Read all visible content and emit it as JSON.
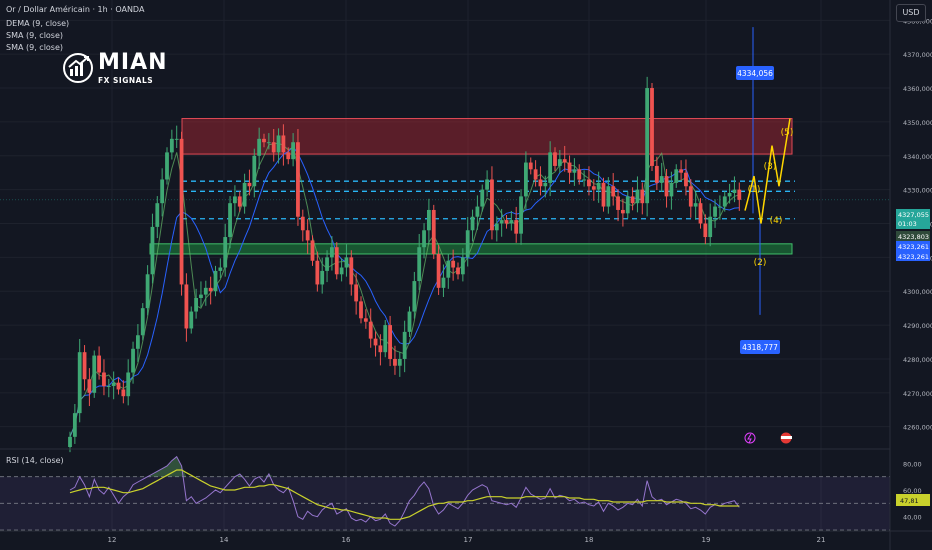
{
  "header": {
    "title": "Or / Dollar Américain · 1h · OANDA",
    "indicator_1": "DEMA (9, close)",
    "indicator_2": "SMA (9, close)",
    "indicator_3": "SMA (9, close)",
    "rsi_label": "RSI (14, close)"
  },
  "currency_button": "USD",
  "logo": {
    "main": "MIAN",
    "sub": "FX SIGNALS"
  },
  "colors": {
    "bg": "#131722",
    "up": "#26a69a",
    "down": "#ef5350",
    "up_candle": "#3fa874",
    "resistance_zone": "#b22833",
    "support_zone": "#1e8a3e",
    "dashed": "#29b6f6",
    "wave": "#ffd600",
    "rsi_line": "#9575cd",
    "rsi_ma": "#c9d12c",
    "price_label": "#2962ff"
  },
  "chart_data": [
    {
      "type": "candlestick",
      "x_ticks": [
        "12",
        "14",
        "16",
        "17",
        "18",
        "19",
        "21"
      ],
      "y_ticks": [
        "4380,000",
        "4370,000",
        "4360,000",
        "4350,000",
        "4340,000",
        "4330,000",
        "4320,000",
        "4310,000",
        "4300,000",
        "4290,000",
        "4280,000",
        "4270,000",
        "4260,000"
      ],
      "y_range": [
        4254,
        4386
      ],
      "close": [
        4257,
        4264,
        4282,
        4274,
        4270,
        4281,
        4276,
        4272,
        4272,
        4273,
        4271,
        4269,
        4276,
        4283,
        4287,
        4295,
        4305,
        4319,
        4326,
        4333,
        4341,
        4345,
        4345,
        4302,
        4289,
        4294,
        4298,
        4299,
        4301,
        4300,
        4306,
        4307,
        4316,
        4326,
        4328,
        4325,
        4332,
        4331,
        4340,
        4345,
        4344,
        4344,
        4341,
        4346,
        4341,
        4339,
        4344,
        4322,
        4318,
        4315,
        4309,
        4302,
        4306,
        4310,
        4313,
        4305,
        4307,
        4310,
        4302,
        4297,
        4292,
        4291,
        4286,
        4284,
        4282,
        4290,
        4280,
        4278,
        4280,
        4288,
        4294,
        4303,
        4313,
        4318,
        4324,
        4311,
        4301,
        4304,
        4309,
        4307,
        4305,
        4310,
        4318,
        4322,
        4325,
        4330,
        4333,
        4318,
        4320,
        4321,
        4320,
        4321,
        4317,
        4328,
        4338,
        4336,
        4333,
        4331,
        4332,
        4341,
        4337,
        4339,
        4338,
        4335,
        4336,
        4333,
        4333,
        4331,
        4330,
        4332,
        4325,
        4331,
        4328,
        4324,
        4323,
        4328,
        4326,
        4330,
        4326,
        4360,
        4337,
        4332,
        4334,
        4328,
        4332,
        4336,
        4335,
        4331,
        4325,
        4326,
        4320,
        4316,
        4322,
        4325,
        4325,
        4328,
        4329,
        4330,
        4327
      ],
      "wave_labels": [
        "(1)",
        "(2)",
        "(3)",
        "(4)",
        "(5)"
      ],
      "wave_path": [
        4323.8,
        4334,
        4320,
        4343,
        4331,
        4351
      ],
      "resistance_zone": [
        4340.5,
        4351
      ],
      "support_zone": [
        4311,
        4314
      ],
      "dashed_levels": [
        4332.5,
        4329.5,
        4321.4
      ],
      "projection": {
        "high": 4380,
        "low": 4290
      },
      "price_labels": [
        "4334,056",
        "4318,777"
      ],
      "right_labels": [
        "4327,055",
        "01:03",
        "4323,803",
        "4323,261",
        "4323,261"
      ]
    },
    {
      "type": "line",
      "name": "RSI (14, close)",
      "y_ticks": [
        "80,00",
        "60,00",
        "40,00"
      ],
      "y_range": [
        30,
        90
      ],
      "band": [
        30,
        70
      ],
      "current_label": "47,81",
      "rsi": [
        60,
        62,
        70,
        64,
        55,
        68,
        60,
        57,
        62,
        56,
        50,
        55,
        58,
        64,
        66,
        68,
        70,
        72,
        74,
        76,
        78,
        82,
        85,
        78,
        52,
        55,
        50,
        52,
        54,
        57,
        60,
        58,
        62,
        66,
        70,
        72,
        68,
        63,
        68,
        70,
        66,
        72,
        64,
        60,
        58,
        62,
        52,
        40,
        38,
        44,
        41,
        40,
        45,
        48,
        50,
        42,
        44,
        46,
        39,
        37,
        38,
        36,
        40,
        37,
        38,
        42,
        35,
        33,
        37,
        44,
        52,
        56,
        62,
        66,
        61,
        48,
        42,
        45,
        50,
        48,
        46,
        50,
        56,
        60,
        62,
        64,
        62,
        52,
        51,
        50,
        49,
        50,
        47,
        54,
        62,
        57,
        55,
        53,
        54,
        61,
        54,
        56,
        55,
        52,
        53,
        50,
        51,
        49,
        48,
        51,
        44,
        50,
        48,
        45,
        47,
        50,
        49,
        53,
        48,
        67,
        55,
        52,
        53,
        49,
        51,
        53,
        52,
        50,
        46,
        47,
        45,
        42,
        47,
        49,
        48,
        50,
        51,
        52,
        47
      ],
      "rsi_ma": [
        58,
        59,
        60,
        61,
        61,
        62,
        62,
        62,
        61,
        60,
        59,
        58,
        58,
        59,
        60,
        61,
        63,
        65,
        67,
        69,
        71,
        73,
        75,
        75,
        73,
        71,
        69,
        67,
        65,
        63,
        62,
        61,
        60,
        60,
        60,
        61,
        62,
        62,
        62,
        63,
        63,
        64,
        64,
        63,
        62,
        61,
        59,
        57,
        55,
        53,
        51,
        49,
        48,
        47,
        46,
        46,
        45,
        45,
        44,
        43,
        42,
        41,
        40,
        39,
        39,
        39,
        38,
        38,
        38,
        39,
        40,
        42,
        44,
        46,
        48,
        49,
        50,
        50,
        51,
        51,
        51,
        51,
        52,
        52,
        53,
        54,
        55,
        55,
        55,
        55,
        54,
        54,
        54,
        54,
        55,
        55,
        55,
        55,
        55,
        55,
        55,
        55,
        55,
        54,
        54,
        54,
        53,
        53,
        53,
        52,
        52,
        52,
        51,
        51,
        51,
        51,
        51,
        51,
        51,
        52,
        52,
        52,
        52,
        51,
        51,
        51,
        51,
        51,
        50,
        50,
        50,
        49,
        49,
        49,
        48,
        48,
        48,
        48,
        48
      ]
    }
  ]
}
